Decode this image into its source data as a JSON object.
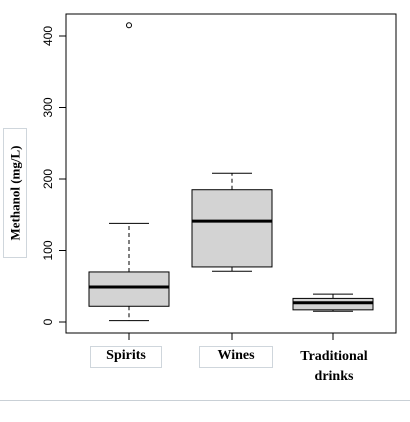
{
  "chart_data": {
    "type": "boxplot",
    "ylabel": "Methanol (mg/L)",
    "ylim": [
      -10,
      420
    ],
    "yticks": [
      0,
      100,
      200,
      300,
      400
    ],
    "categories": [
      "Spirits",
      "Wines",
      "Traditional drinks"
    ],
    "category_labels": [
      {
        "lines": [
          "Spirits"
        ]
      },
      {
        "lines": [
          "Wines"
        ]
      },
      {
        "lines": [
          "Traditional",
          "drinks"
        ]
      }
    ],
    "boxes": [
      {
        "name": "Spirits",
        "min": 2,
        "q1": 22,
        "median": 49,
        "q3": 70,
        "max": 138,
        "outliers": [
          415
        ]
      },
      {
        "name": "Wines",
        "min": 71,
        "q1": 77,
        "median": 141,
        "q3": 185,
        "max": 208,
        "outliers": []
      },
      {
        "name": "Traditional drinks",
        "min": 15,
        "q1": 17,
        "median": 27,
        "q3": 33,
        "max": 39,
        "outliers": []
      }
    ],
    "grid": false,
    "box_fill": "#d3d3d3",
    "line_color": "#000000"
  }
}
